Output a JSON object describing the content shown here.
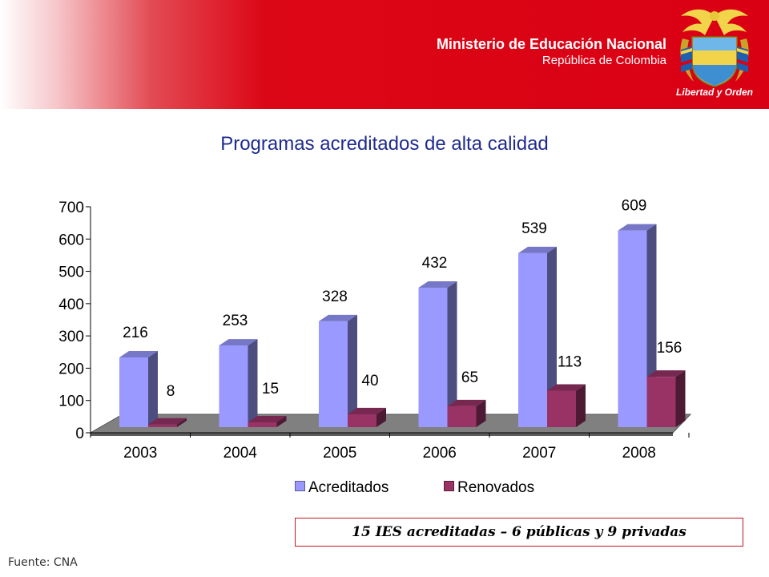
{
  "header": {
    "ministry": "Ministerio de Educación Nacional",
    "country": "República de Colombia",
    "seal_motto": "Libertad y Orden",
    "seal_icon": "colombian-coat-of-arms-icon"
  },
  "chart_data": {
    "type": "bar",
    "title": "Programas acreditados de alta calidad",
    "categories": [
      "2003",
      "2004",
      "2005",
      "2006",
      "2007",
      "2008"
    ],
    "series": [
      {
        "name": "Acreditados",
        "values": [
          216,
          253,
          328,
          432,
          539,
          609
        ],
        "color": "#9999ff"
      },
      {
        "name": "Renovados",
        "values": [
          8,
          15,
          40,
          65,
          113,
          156
        ],
        "color": "#993366"
      }
    ],
    "yticks": [
      "0",
      "100",
      "200",
      "300",
      "400",
      "500",
      "600",
      "700"
    ],
    "ylim": [
      0,
      700
    ],
    "legend_position": "bottom",
    "style": "3d"
  },
  "note": "15 IES acreditadas – 6 públicas y 9 privadas",
  "source": "Fuente: CNA"
}
